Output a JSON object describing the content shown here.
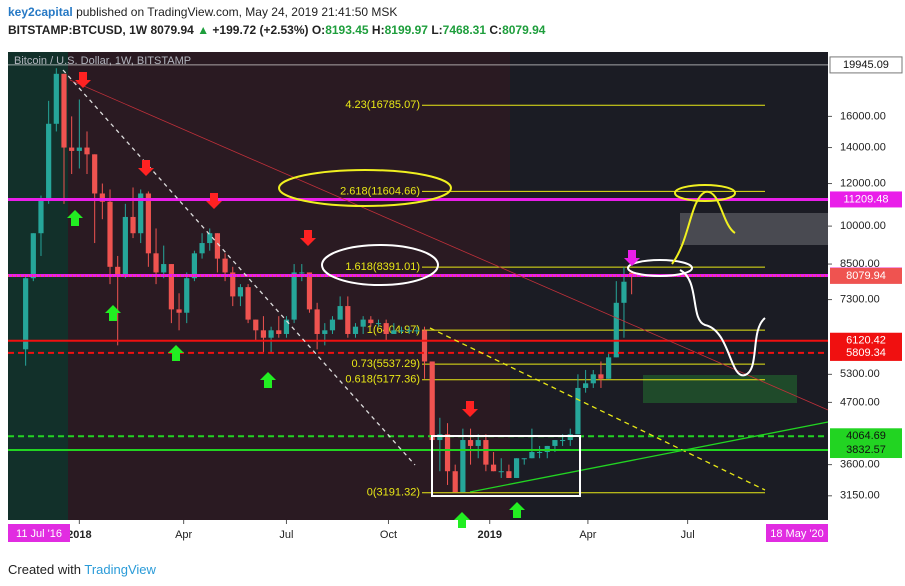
{
  "header": {
    "author": "key2capital",
    "published": "published on TradingView.com, May 24, 2019 21:41:50 MSK",
    "symbol": "BITSTAMP:BTCUSD, 1W",
    "last": "8079.94",
    "arrow": "▲",
    "change": "+199.72 (+2.53%)",
    "o_label": "O:",
    "o": "8193.45",
    "h_label": "H:",
    "h": "8199.97",
    "l_label": "L:",
    "l": "7468.31",
    "c_label": "C:",
    "c": "8079.94"
  },
  "footer": {
    "created": "Created with",
    "brand": "TradingView"
  },
  "chart_data": {
    "type": "candlestick",
    "title": "Bitcoin / U.S. Dollar, 1W, BITSTAMP",
    "log_scale": true,
    "up_color": "#26a69a",
    "down_color": "#ef5350",
    "x": [
      0,
      1,
      2,
      3,
      4,
      5,
      6,
      7,
      8,
      9,
      10,
      11,
      12,
      13,
      14,
      15,
      16,
      17,
      18,
      19,
      20,
      21,
      22,
      23,
      24,
      25,
      26,
      27,
      28,
      29,
      30,
      31,
      32,
      33,
      34,
      35,
      36,
      37,
      38,
      39,
      40,
      41,
      42,
      43,
      44,
      45,
      46,
      47,
      48,
      49,
      50,
      51,
      52,
      53,
      54,
      55,
      56,
      57,
      58,
      59,
      60,
      61,
      62,
      63,
      64,
      65,
      66,
      67,
      68,
      69,
      70,
      71,
      72,
      73,
      74,
      75,
      76,
      77,
      78,
      79
    ],
    "open": [
      5900,
      8000,
      9700,
      11200,
      15500,
      19200,
      14000,
      13800,
      14000,
      13600,
      11500,
      11100,
      8400,
      8100,
      10400,
      9700,
      11500,
      8900,
      8200,
      8500,
      7000,
      6900,
      8000,
      8900,
      9300,
      9700,
      8700,
      8200,
      7400,
      7700,
      6700,
      6400,
      6200,
      6400,
      6300,
      6700,
      8200,
      8200,
      7000,
      6300,
      6400,
      6700,
      7100,
      6300,
      6500,
      6700,
      6600,
      6600,
      6300,
      6400,
      6400,
      6400,
      6400,
      5600,
      4000,
      4100,
      3500,
      3200,
      4000,
      3900,
      4000,
      3600,
      3500,
      3500,
      3400,
      3700,
      3700,
      3800,
      3800,
      3900,
      4000,
      4000,
      4100,
      5000,
      5100,
      5300,
      5200,
      5700,
      7200,
      8193.45
    ],
    "high": [
      8100,
      9700,
      11400,
      17100,
      19666,
      19200,
      16000,
      17200,
      15000,
      13600,
      12000,
      11700,
      8800,
      11000,
      11800,
      11700,
      11600,
      9900,
      9200,
      8500,
      7500,
      8200,
      9000,
      9700,
      9900,
      9700,
      8900,
      8400,
      7800,
      7800,
      6700,
      6800,
      6500,
      6800,
      6800,
      8500,
      8500,
      8200,
      7200,
      6600,
      6800,
      7400,
      7400,
      6600,
      6800,
      6800,
      6700,
      6700,
      6600,
      6500,
      6500,
      6500,
      6500,
      5600,
      4400,
      4300,
      3600,
      4200,
      4200,
      4100,
      4100,
      3800,
      3700,
      3600,
      3700,
      3700,
      4200,
      3900,
      3900,
      4000,
      4100,
      4200,
      5300,
      5400,
      5400,
      5600,
      5800,
      7900,
      8400,
      8199.97
    ],
    "low": [
      5500,
      7900,
      8800,
      11000,
      15000,
      11000,
      12500,
      12800,
      12500,
      9300,
      10300,
      7800,
      6000,
      8000,
      9500,
      9300,
      8400,
      7800,
      8000,
      6600,
      6400,
      6600,
      7900,
      8700,
      9000,
      8200,
      7900,
      7100,
      7100,
      6600,
      6100,
      5800,
      5800,
      6200,
      6200,
      6600,
      7900,
      6900,
      5900,
      6000,
      6300,
      6700,
      6200,
      6200,
      6300,
      6500,
      6500,
      6100,
      6300,
      6300,
      6300,
      6300,
      5200,
      3600,
      3500,
      3300,
      3200,
      3200,
      3600,
      3700,
      3500,
      3500,
      3400,
      3400,
      3400,
      3600,
      3700,
      3700,
      3700,
      3800,
      3900,
      3900,
      4100,
      4900,
      5000,
      5000,
      5200,
      5700,
      6200,
      7468.31
    ],
    "close": [
      8000,
      9700,
      11200,
      15500,
      19200,
      14000,
      13800,
      14000,
      13600,
      11500,
      11100,
      8400,
      8100,
      10400,
      9700,
      11500,
      8900,
      8200,
      8500,
      7000,
      6900,
      8000,
      8900,
      9300,
      9700,
      8700,
      8200,
      7400,
      7700,
      6700,
      6400,
      6200,
      6400,
      6300,
      6700,
      8200,
      8200,
      7000,
      6300,
      6400,
      6700,
      7100,
      6300,
      6500,
      6700,
      6600,
      6600,
      6300,
      6400,
      6400,
      6400,
      6400,
      5600,
      4000,
      4100,
      3500,
      3200,
      4000,
      3900,
      4000,
      3600,
      3500,
      3500,
      3400,
      3700,
      3700,
      3800,
      3800,
      3900,
      4000,
      4000,
      4100,
      5000,
      5100,
      5300,
      5200,
      5700,
      7200,
      7880.22,
      8079.94
    ],
    "xlim": [
      -2.3,
      104.6
    ],
    "xticks": [
      {
        "value": 7,
        "label": "2018"
      },
      {
        "value": 20.6,
        "label": "Apr"
      },
      {
        "value": 34,
        "label": "Jul"
      },
      {
        "value": 47.3,
        "label": "Oct"
      },
      {
        "value": 60.5,
        "label": "2019"
      },
      {
        "value": 73.3,
        "label": "Apr"
      },
      {
        "value": 86.3,
        "label": "Jul"
      }
    ],
    "x_range_labels": [
      "11 Jul '16",
      "18 May '20"
    ],
    "ylim": [
      2840,
      20370
    ],
    "yticks": [
      {
        "value": 16000,
        "label": "16000.00"
      },
      {
        "value": 14000,
        "label": "14000.00"
      },
      {
        "value": 12000,
        "label": "12000.00"
      },
      {
        "value": 10000,
        "label": "10000.00"
      },
      {
        "value": 8500,
        "label": "8500.00"
      },
      {
        "value": 7300,
        "label": "7300.00"
      },
      {
        "value": 5300,
        "label": "5300.00"
      },
      {
        "value": 4700,
        "label": "4700.00"
      },
      {
        "value": 3600,
        "label": "3600.00"
      },
      {
        "value": 3150,
        "label": "3150.00"
      }
    ],
    "price_lines": [
      {
        "value": 19945.09,
        "color": "#ffffff",
        "style": "solid"
      },
      {
        "value": 11209.48,
        "color": "#e91ee9",
        "style": "solid"
      },
      {
        "value": 8092.08,
        "color": "#e91ee9",
        "style": "solid"
      },
      {
        "value": 8079.94,
        "color": "#ef5350",
        "style": "dotted"
      },
      {
        "value": 6120.42,
        "color": "#f01010",
        "style": "solid"
      },
      {
        "value": 5809.34,
        "color": "#f01010",
        "style": "dashed"
      },
      {
        "value": 4064.69,
        "color": "#22d422",
        "style": "dashed"
      },
      {
        "value": 3832.57,
        "color": "#22d422",
        "style": "solid"
      }
    ],
    "fib_color": "#e8e816",
    "fib_levels": [
      {
        "value": 16785.07,
        "label": "4.23(16785.07)"
      },
      {
        "value": 11604.66,
        "label": "2.618(11604.66)"
      },
      {
        "value": 8391.01,
        "label": "1.618(8391.01)"
      },
      {
        "value": 6404.97,
        "label": "1(6404.97)"
      },
      {
        "value": 5537.29,
        "label": "0.73(5537.29)"
      },
      {
        "value": 5177.36,
        "label": "0.618(5177.36)"
      },
      {
        "value": 3191.32,
        "label": "0(3191.32)"
      }
    ]
  }
}
